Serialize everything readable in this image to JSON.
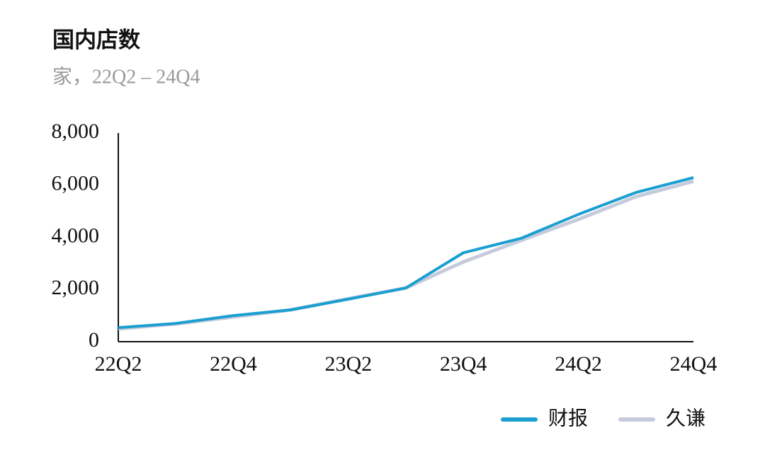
{
  "chart_data": {
    "type": "line",
    "title": "国内店数",
    "subtitle": "家，22Q2 – 24Q4",
    "categories": [
      "22Q2",
      null,
      "22Q4",
      null,
      "23Q2",
      null,
      "23Q4",
      null,
      "24Q2",
      null,
      "24Q4"
    ],
    "series": [
      {
        "name": "财报",
        "color": "#1a9fd0",
        "values": [
          540,
          700,
          1000,
          1220,
          1630,
          2060,
          3410,
          3960,
          4880,
          5720,
          6290
        ]
      },
      {
        "name": "久谦",
        "color": "#c5cbdc",
        "values": [
          490,
          680,
          950,
          1220,
          1650,
          2060,
          3060,
          3880,
          4690,
          5560,
          6150
        ]
      }
    ],
    "ylim": [
      0,
      8000
    ],
    "yticks": [
      0,
      {
        "value": 2000,
        "label": "2,000"
      },
      {
        "value": 4000,
        "label": "4,000"
      },
      {
        "value": 6000,
        "label": "6,000"
      },
      {
        "value": 8000,
        "label": "8,000"
      }
    ],
    "legend": "bottom-right"
  }
}
